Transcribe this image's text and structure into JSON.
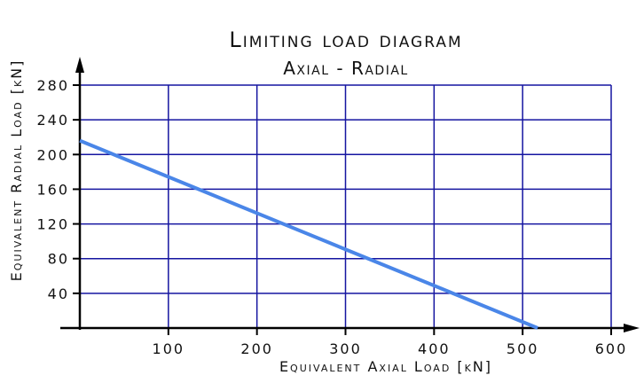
{
  "chart_data": {
    "type": "line",
    "title": "Limiting load diagram",
    "subtitle": "Axial - Radial",
    "xlabel": "Equivalent Axial Load [kN]",
    "ylabel": "Equivalent Radial Load [kN]",
    "xlim": [
      0,
      600
    ],
    "ylim": [
      0,
      280
    ],
    "xticks": [
      100,
      200,
      300,
      400,
      500,
      600
    ],
    "yticks": [
      40,
      80,
      120,
      160,
      200,
      240,
      280
    ],
    "grid": true,
    "series": [
      {
        "x": [
          0,
          517
        ],
        "y": [
          216,
          0
        ]
      }
    ]
  },
  "colors": {
    "grid": "#1515a0",
    "axis": "#000000",
    "series": "#4a86e8",
    "text": "#111111"
  }
}
